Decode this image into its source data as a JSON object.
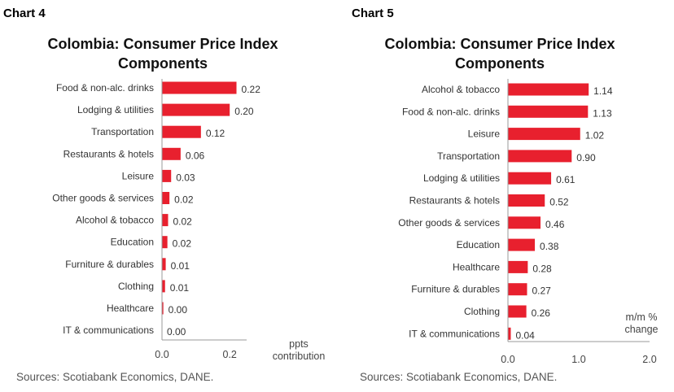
{
  "chart_data": [
    {
      "type": "bar",
      "orientation": "horizontal",
      "chart_label": "Chart 4",
      "title": "Colombia: Consumer Price Index Components",
      "title_lines": [
        "Colombia: Consumer Price Index",
        "Components"
      ],
      "categories": [
        "Food & non-alc. drinks",
        "Lodging & utilities",
        "Transportation",
        "Restaurants & hotels",
        "Leisure",
        "Other goods & services",
        "Alcohol & tobacco",
        "Education",
        "Furniture & durables",
        "Clothing",
        "Healthcare",
        "IT & communications"
      ],
      "values": [
        0.22,
        0.2,
        0.12,
        0.06,
        0.03,
        0.02,
        0.02,
        0.02,
        0.01,
        0.01,
        0.0,
        0.0
      ],
      "value_labels": [
        "0.22",
        "0.20",
        "0.12",
        "0.06",
        "0.03",
        "0.02",
        "0.02",
        "0.02",
        "0.01",
        "0.01",
        "0.00",
        "0.00"
      ],
      "bar_values": [
        0.22,
        0.2,
        0.115,
        0.055,
        0.027,
        0.022,
        0.018,
        0.016,
        0.011,
        0.009,
        0.004,
        0.0
      ],
      "xlim": [
        0,
        0.25
      ],
      "xticks": [
        0.0,
        0.2
      ],
      "xtick_labels": [
        "0.0",
        "0.2"
      ],
      "unit_lines": [
        "ppts",
        "contribution"
      ],
      "bar_color": "#e8202e",
      "grid": false,
      "source": "Sources: Scotiabank Economics, DANE."
    },
    {
      "type": "bar",
      "orientation": "horizontal",
      "chart_label": "Chart 5",
      "title": "Colombia: Consumer Price Index Components",
      "title_lines": [
        "Colombia: Consumer Price Index",
        "Components"
      ],
      "categories": [
        "Alcohol & tobacco",
        "Food & non-alc. drinks",
        "Leisure",
        "Transportation",
        "Lodging & utilities",
        "Restaurants & hotels",
        "Other goods & services",
        "Education",
        "Healthcare",
        "Furniture & durables",
        "Clothing",
        "IT & communications"
      ],
      "values": [
        1.14,
        1.13,
        1.02,
        0.9,
        0.61,
        0.52,
        0.46,
        0.38,
        0.28,
        0.27,
        0.26,
        0.04
      ],
      "value_labels": [
        "1.14",
        "1.13",
        "1.02",
        "0.90",
        "0.61",
        "0.52",
        "0.46",
        "0.38",
        "0.28",
        "0.27",
        "0.26",
        "0.04"
      ],
      "bar_values": [
        1.14,
        1.13,
        1.02,
        0.9,
        0.61,
        0.52,
        0.46,
        0.38,
        0.28,
        0.27,
        0.26,
        0.04
      ],
      "xlim": [
        0,
        2.0
      ],
      "xticks": [
        0.0,
        1.0,
        2.0
      ],
      "xtick_labels": [
        "0.0",
        "1.0",
        "2.0"
      ],
      "unit_lines": [
        "m/m %",
        "change"
      ],
      "bar_color": "#e8202e",
      "grid": false,
      "source": "Sources: Scotiabank Economics, DANE."
    }
  ]
}
